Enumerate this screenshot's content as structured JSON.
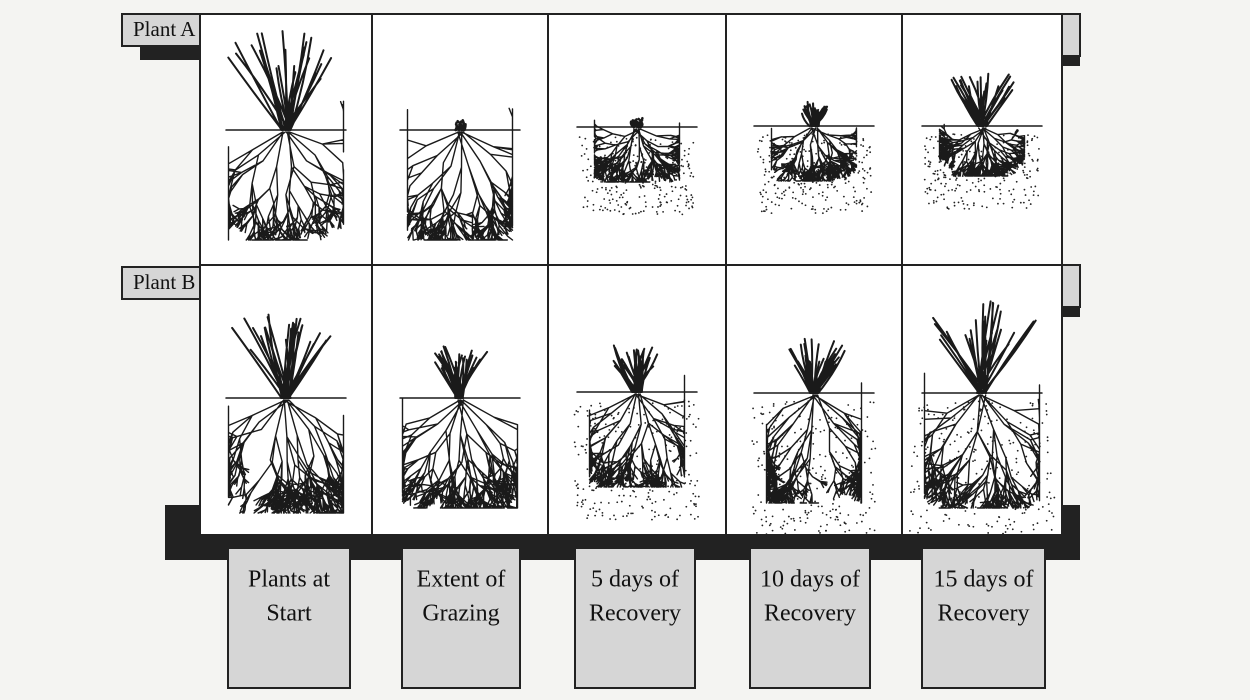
{
  "rows": [
    {
      "label": "Plant A"
    },
    {
      "label": "Plant B"
    }
  ],
  "columns": [
    {
      "label_lines": [
        "Plants at",
        "Start"
      ]
    },
    {
      "label_lines": [
        "Extent of",
        "Grazing"
      ]
    },
    {
      "label_lines": [
        "5 days of",
        "Recovery"
      ]
    },
    {
      "label_lines": [
        "10 days of",
        "Recovery"
      ]
    },
    {
      "label_lines": [
        "15 days of",
        "Recovery"
      ]
    }
  ]
}
